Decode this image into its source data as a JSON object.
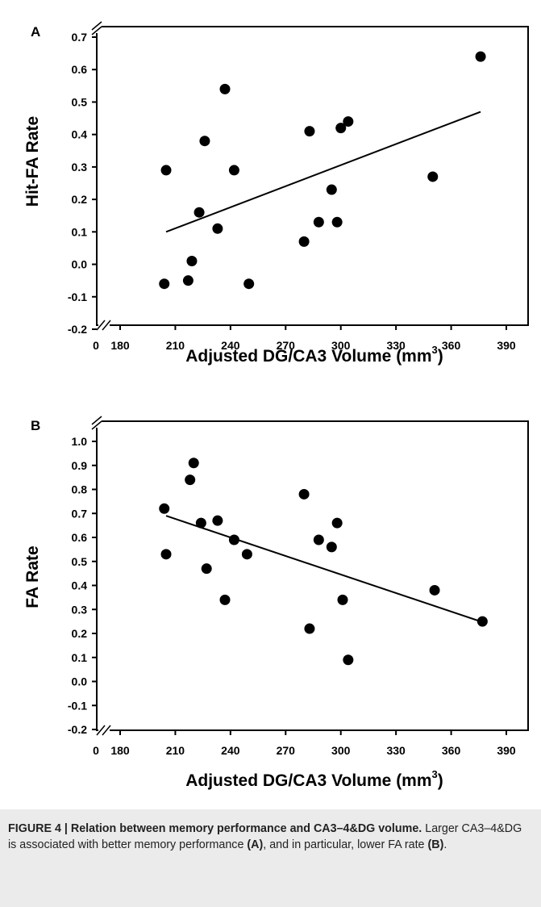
{
  "chart_data": [
    {
      "type": "scatter",
      "panel_label": "A",
      "xlabel_prefix": "Adjusted DG/CA3 Volume (mm",
      "xlabel_sup": "3",
      "xlabel_suffix": ")",
      "ylabel": "Hit-FA Rate",
      "xlim": [
        150,
        420
      ],
      "ylim": [
        -0.2,
        0.75
      ],
      "x_zero_label": "0",
      "x_ticks": [
        180,
        210,
        240,
        270,
        300,
        330,
        360,
        390
      ],
      "y_ticks": [
        -0.2,
        -0.1,
        0.0,
        0.1,
        0.2,
        0.3,
        0.4,
        0.5,
        0.6,
        0.7
      ],
      "y_tick_labels": [
        "-0.2",
        "-0.1",
        "0.0",
        "0.1",
        "0.2",
        "0.3",
        "0.4",
        "0.5",
        "0.6",
        "0.7"
      ],
      "x_axis_break": true,
      "y_axis_break": true,
      "grid": false,
      "points": [
        {
          "x": 204,
          "y": -0.06
        },
        {
          "x": 205,
          "y": 0.29
        },
        {
          "x": 217,
          "y": -0.05
        },
        {
          "x": 219,
          "y": 0.01
        },
        {
          "x": 223,
          "y": 0.16
        },
        {
          "x": 226,
          "y": 0.38
        },
        {
          "x": 233,
          "y": 0.11
        },
        {
          "x": 237,
          "y": 0.54
        },
        {
          "x": 242,
          "y": 0.29
        },
        {
          "x": 250,
          "y": -0.06
        },
        {
          "x": 280,
          "y": 0.07
        },
        {
          "x": 283,
          "y": 0.41
        },
        {
          "x": 288,
          "y": 0.13
        },
        {
          "x": 295,
          "y": 0.23
        },
        {
          "x": 298,
          "y": 0.13
        },
        {
          "x": 300,
          "y": 0.42
        },
        {
          "x": 304,
          "y": 0.44
        },
        {
          "x": 350,
          "y": 0.27
        },
        {
          "x": 376,
          "y": 0.64
        }
      ],
      "fit_line": {
        "x1": 205,
        "y1": 0.1,
        "x2": 376,
        "y2": 0.47
      }
    },
    {
      "type": "scatter",
      "panel_label": "B",
      "xlabel_prefix": "Adjusted DG/CA3 Volume (mm",
      "xlabel_sup": "3",
      "xlabel_suffix": ")",
      "ylabel": "FA Rate",
      "xlim": [
        150,
        420
      ],
      "ylim": [
        -0.2,
        1.05
      ],
      "x_zero_label": "0",
      "x_ticks": [
        180,
        210,
        240,
        270,
        300,
        330,
        360,
        390
      ],
      "y_ticks": [
        -0.2,
        -0.1,
        0.0,
        0.1,
        0.2,
        0.3,
        0.4,
        0.5,
        0.6,
        0.7,
        0.8,
        0.9,
        1.0
      ],
      "y_tick_labels": [
        "-0.2",
        "-0.1",
        "0.0",
        "0.1",
        "0.2",
        "0.3",
        "0.4",
        "0.5",
        "0.6",
        "0.7",
        "0.8",
        "0.9",
        "1.0"
      ],
      "x_axis_break": true,
      "y_axis_break": true,
      "grid": false,
      "points": [
        {
          "x": 204,
          "y": 0.72
        },
        {
          "x": 205,
          "y": 0.53
        },
        {
          "x": 218,
          "y": 0.84
        },
        {
          "x": 220,
          "y": 0.91
        },
        {
          "x": 224,
          "y": 0.66
        },
        {
          "x": 227,
          "y": 0.47
        },
        {
          "x": 233,
          "y": 0.67
        },
        {
          "x": 237,
          "y": 0.34
        },
        {
          "x": 242,
          "y": 0.59
        },
        {
          "x": 249,
          "y": 0.53
        },
        {
          "x": 280,
          "y": 0.78
        },
        {
          "x": 283,
          "y": 0.22
        },
        {
          "x": 288,
          "y": 0.59
        },
        {
          "x": 295,
          "y": 0.56
        },
        {
          "x": 298,
          "y": 0.66
        },
        {
          "x": 301,
          "y": 0.34
        },
        {
          "x": 304,
          "y": 0.09
        },
        {
          "x": 351,
          "y": 0.38
        },
        {
          "x": 377,
          "y": 0.25
        }
      ],
      "fit_line": {
        "x1": 205,
        "y1": 0.69,
        "x2": 376,
        "y2": 0.25
      }
    }
  ],
  "caption": {
    "figure_label": "FIGURE 4 | Relation between memory performance and CA3–4&DG volume.",
    "text_1": " Larger CA3–4&DG is associated with better memory performance ",
    "ref_a": "(A)",
    "text_2": ", and in particular, lower FA rate ",
    "ref_b": "(B)",
    "text_3": "."
  }
}
